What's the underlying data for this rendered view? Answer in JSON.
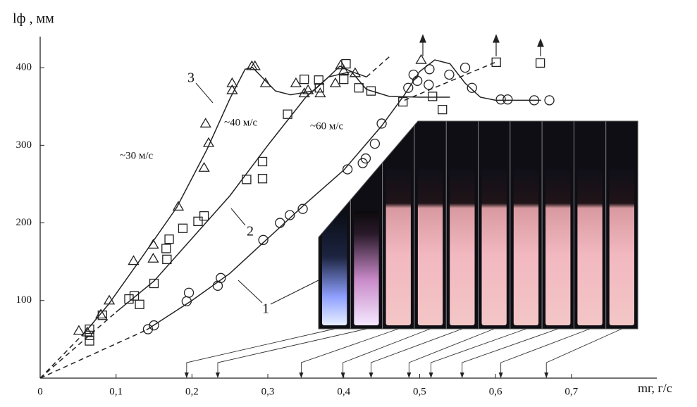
{
  "chart_data": {
    "type": "scatter",
    "ylabel": "lф , мм",
    "xlabel": "mг, г/с",
    "xlim": [
      0,
      0.82
    ],
    "ylim": [
      0,
      440
    ],
    "xticks": [
      0,
      {
        "value": 0.1,
        "label": "0,1"
      },
      {
        "value": 0.2,
        "label": "0,2"
      },
      {
        "value": 0.3,
        "label": "0,3"
      },
      {
        "value": 0.4,
        "label": "0,4"
      },
      {
        "value": 0.5,
        "label": "0,5"
      },
      {
        "value": 0.6,
        "label": "0,6"
      },
      {
        "value": 0.7,
        "label": "0,7"
      }
    ],
    "yticks": [
      100,
      200,
      300,
      400
    ],
    "annotations": [
      "~30 м/с",
      "~40 м/с",
      "~60 м/с"
    ],
    "series": [
      {
        "marker": "triangle",
        "x": [
          0.051,
          0.062,
          0.08,
          0.091,
          0.123,
          0.149,
          0.149,
          0.182,
          0.216,
          0.218,
          0.222,
          0.253,
          0.253,
          0.279,
          0.283,
          0.297,
          0.337,
          0.348,
          0.353,
          0.369,
          0.389,
          0.396,
          0.4,
          0.415,
          0.502
        ],
        "values": [
          61,
          59,
          82,
          100,
          151,
          154,
          172,
          221,
          271,
          328,
          303,
          371,
          380,
          402,
          402,
          380,
          380,
          367,
          371,
          367,
          380,
          403,
          396,
          393,
          410
        ]
      },
      {
        "marker": "square",
        "x": [
          0.065,
          0.065,
          0.065,
          0.082,
          0.117,
          0.124,
          0.131,
          0.15,
          0.166,
          0.167,
          0.17,
          0.188,
          0.208,
          0.216,
          0.272,
          0.293,
          0.293,
          0.326,
          0.348,
          0.368,
          0.367,
          0.4,
          0.403,
          0.42,
          0.436,
          0.478,
          0.517,
          0.53,
          0.601,
          0.659
        ],
        "values": [
          63,
          55,
          48,
          81,
          102,
          106,
          95,
          122,
          167,
          153,
          179,
          193,
          202,
          209,
          256,
          279,
          257,
          340,
          385,
          374,
          384,
          385,
          405,
          374,
          370,
          356,
          363,
          346,
          407,
          406
        ]
      },
      {
        "marker": "circle",
        "x": [
          0.142,
          0.15,
          0.193,
          0.196,
          0.234,
          0.238,
          0.294,
          0.316,
          0.329,
          0.346,
          0.405,
          0.425,
          0.429,
          0.441,
          0.45,
          0.485,
          0.492,
          0.497,
          0.512,
          0.513,
          0.539,
          0.56,
          0.569,
          0.607,
          0.616,
          0.651,
          0.671
        ],
        "values": [
          63,
          68,
          99,
          110,
          119,
          129,
          178,
          200,
          210,
          218,
          269,
          277,
          283,
          302,
          328,
          374,
          391,
          383,
          378,
          398,
          391,
          400,
          374,
          359,
          359,
          358,
          358
        ]
      }
    ],
    "lines": [
      {
        "name": "3",
        "dashed": false,
        "x": [
          0.06,
          0.09,
          0.13,
          0.18,
          0.22,
          0.25,
          0.27,
          0.28,
          0.295,
          0.31,
          0.33,
          0.36,
          0.38,
          0.395,
          0.41,
          0.43,
          0.46,
          0.5,
          0.54
        ],
        "values": [
          60,
          95,
          150,
          220,
          295,
          360,
          398,
          400,
          385,
          370,
          365,
          370,
          388,
          402,
          395,
          372,
          363,
          362,
          362
        ]
      },
      {
        "dashed": true,
        "x": [
          0,
          0.06
        ],
        "values": [
          0,
          60
        ]
      },
      {
        "name": "2",
        "dashed": false,
        "x": [
          0.1,
          0.15,
          0.2,
          0.25,
          0.3,
          0.35,
          0.38,
          0.41,
          0.43
        ],
        "values": [
          85,
          125,
          180,
          235,
          300,
          362,
          388,
          395,
          388
        ]
      },
      {
        "dashed": true,
        "x": [
          0,
          0.1
        ],
        "values": [
          0,
          85
        ]
      },
      {
        "name": "1",
        "dashed": false,
        "x": [
          0.14,
          0.2,
          0.25,
          0.3,
          0.35,
          0.4,
          0.45,
          0.48,
          0.5,
          0.52,
          0.54,
          0.56,
          0.58,
          0.6,
          0.66
        ],
        "values": [
          62,
          100,
          135,
          180,
          225,
          268,
          325,
          365,
          395,
          410,
          405,
          380,
          362,
          358,
          358
        ]
      },
      {
        "dashed": true,
        "x": [
          0,
          0.14
        ],
        "values": [
          0,
          62
        ]
      },
      {
        "dashed": true,
        "x": [
          0.43,
          0.46
        ],
        "values": [
          388,
          414
        ]
      },
      {
        "dashed": true,
        "x": [
          0.48,
          0.6
        ],
        "values": [
          358,
          407
        ]
      }
    ],
    "photo_x": [
      0.193,
      0.234,
      0.344,
      0.399,
      0.436,
      0.486,
      0.515,
      0.556,
      0.607,
      0.667
    ]
  }
}
